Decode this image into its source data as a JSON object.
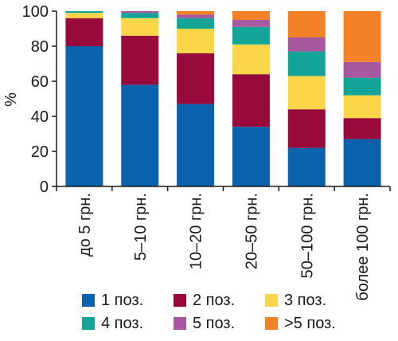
{
  "chart_data": {
    "type": "bar",
    "stacked": true,
    "ylabel": "%",
    "xlabel": "",
    "ylim": [
      0,
      100
    ],
    "yticks": [
      0,
      20,
      40,
      60,
      80,
      100
    ],
    "grid": false,
    "legend_position": "bottom",
    "categories": [
      "до 5 грн.",
      "5–10 грн.",
      "10–20 грн.",
      "20–50 грн.",
      "50–100 грн.",
      "более 100 грн."
    ],
    "series": [
      {
        "name": "1 поз.",
        "color": "#0a62ac",
        "values": [
          80,
          58,
          47,
          34,
          22,
          27
        ]
      },
      {
        "name": "2 поз.",
        "color": "#970a3b",
        "values": [
          16,
          28,
          29,
          30,
          22,
          12
        ]
      },
      {
        "name": "3 поз.",
        "color": "#fad648",
        "values": [
          3,
          10,
          14,
          17,
          19,
          13
        ]
      },
      {
        "name": "4 поз.",
        "color": "#12a597",
        "values": [
          1,
          3,
          6,
          10,
          14,
          10
        ]
      },
      {
        "name": "5 поз.",
        "color": "#a6599e",
        "values": [
          0,
          1,
          2,
          4,
          8,
          9
        ]
      },
      {
        "name": ">5 поз.",
        "color": "#f28127",
        "values": [
          0,
          0,
          2,
          5,
          15,
          29
        ]
      }
    ]
  }
}
